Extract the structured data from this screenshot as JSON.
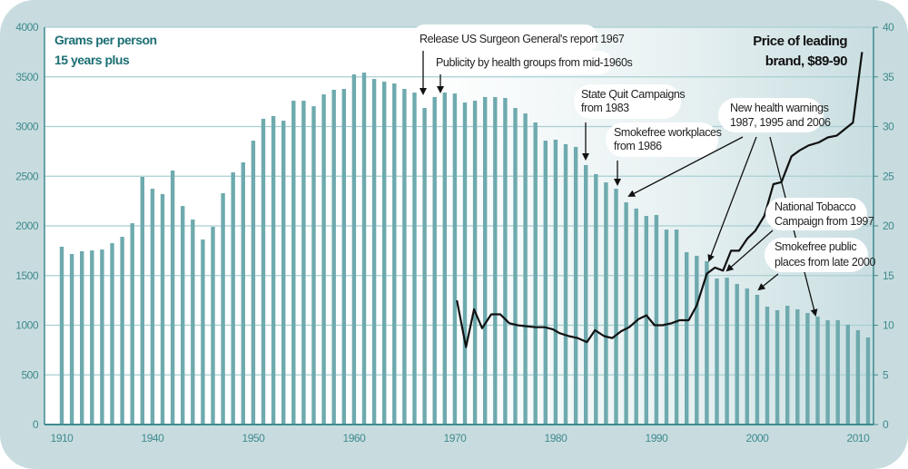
{
  "chart_data": {
    "type": "bar",
    "title": "",
    "left_axis": {
      "label_lines": [
        "Grams per person",
        "15 years plus"
      ],
      "ylim": [
        0,
        4000
      ],
      "ticks": [
        0,
        500,
        1000,
        1500,
        2000,
        2500,
        3000,
        3500,
        4000
      ]
    },
    "right_axis": {
      "label_lines": [
        "Price of leading",
        "brand, $89-90"
      ],
      "ylim": [
        0,
        40
      ],
      "ticks": [
        0,
        5,
        10,
        15,
        20,
        25,
        30,
        35,
        40
      ]
    },
    "x_tick_labels": [
      "1910",
      "1940",
      "1950",
      "1960",
      "1970",
      "1980",
      "1990",
      "2000",
      "2010"
    ],
    "grid": true,
    "categories": [
      "1910",
      "1932",
      "1933",
      "1934",
      "1935",
      "1936",
      "1937",
      "1938",
      "1939",
      "1940",
      "1941",
      "1942",
      "1943",
      "1944",
      "1945",
      "1946",
      "1947",
      "1948",
      "1949",
      "1950",
      "1951",
      "1952",
      "1953",
      "1954",
      "1955",
      "1956",
      "1957",
      "1958",
      "1959",
      "1960",
      "1961",
      "1962",
      "1963",
      "1964",
      "1965",
      "1966",
      "1967",
      "1968",
      "1969",
      "1970",
      "1971",
      "1972",
      "1973",
      "1974",
      "1975",
      "1976",
      "1977",
      "1978",
      "1979",
      "1980",
      "1981",
      "1982",
      "1983",
      "1984",
      "1985",
      "1986",
      "1987",
      "1988",
      "1989",
      "1990",
      "1991",
      "1992",
      "1993",
      "1994",
      "1995",
      "1996",
      "1997",
      "1998",
      "1999",
      "2000",
      "2001",
      "2002",
      "2003",
      "2004",
      "2005",
      "2006",
      "2007",
      "2008",
      "2009",
      "2010",
      "2011"
    ],
    "series": [
      {
        "name": "Grams per person 15 years plus",
        "type": "bar",
        "axis": "left",
        "color": "#6eaaae",
        "values": [
          1790,
          1717,
          1745,
          1753,
          1762,
          1826,
          1890,
          2027,
          2493,
          2374,
          2320,
          2557,
          2200,
          2064,
          1863,
          1991,
          2329,
          2539,
          2639,
          2858,
          3078,
          3105,
          3059,
          3260,
          3260,
          3205,
          3324,
          3370,
          3379,
          3525,
          3543,
          3479,
          3452,
          3434,
          3379,
          3342,
          3187,
          3297,
          3342,
          3333,
          3242,
          3260,
          3297,
          3297,
          3288,
          3187,
          3132,
          3041,
          2858,
          2868,
          2822,
          2795,
          2612,
          2521,
          2438,
          2374,
          2237,
          2174,
          2100,
          2110,
          1963,
          1963,
          1735,
          1699,
          1644,
          1470,
          1479,
          1416,
          1370,
          1306,
          1187,
          1151,
          1196,
          1160,
          1123,
          1087,
          1050,
          1050,
          1005,
          950,
          877
        ]
      },
      {
        "name": "Price of leading brand, $89-90",
        "type": "line",
        "axis": "right",
        "color": "#111111",
        "x_years": [
          1970.2,
          1971.1,
          1971.9,
          1972.7,
          1973.6,
          1974.5,
          1975.4,
          1976.2,
          1977.1,
          1978.0,
          1978.9,
          1979.7,
          1980.4,
          1981.3,
          1982.2,
          1983.1,
          1983.9,
          1984.8,
          1985.6,
          1986.5,
          1987.3,
          1988.2,
          1989.0,
          1989.8,
          1990.6,
          1991.5,
          1992.3,
          1993.2,
          1994.0,
          1995.0,
          1995.8,
          1996.6,
          1997.4,
          1998.2,
          1999.0,
          1999.8,
          2000.7,
          2001.6,
          2002.4,
          2003.4,
          2004.2,
          2005.1,
          2006.1,
          2007.0,
          2007.9,
          2009.5,
          2010.4
        ],
        "values": [
          12.5,
          7.8,
          11.6,
          9.7,
          11.1,
          11.1,
          10.2,
          10.0,
          9.9,
          9.8,
          9.8,
          9.6,
          9.2,
          8.9,
          8.7,
          8.3,
          9.5,
          8.9,
          8.7,
          9.4,
          9.8,
          10.6,
          11.0,
          10.0,
          10.0,
          10.2,
          10.5,
          10.5,
          12.0,
          15.2,
          15.8,
          15.5,
          17.5,
          17.5,
          18.7,
          19.5,
          21.0,
          24.2,
          24.4,
          27.0,
          27.6,
          28.1,
          28.4,
          28.9,
          29.1,
          30.4,
          37.5
        ]
      }
    ],
    "annotations": [
      {
        "id": "surgeon-general",
        "lines": [
          "Release US Surgeon General's report 1967"
        ],
        "points_to": [
          "1967"
        ]
      },
      {
        "id": "publicity",
        "lines": [
          "Publicity by health groups from mid-1960s"
        ],
        "points_to": [
          "1968"
        ]
      },
      {
        "id": "state-quit",
        "lines": [
          "State Quit Campaigns",
          "from 1983"
        ],
        "points_to": [
          "1983"
        ]
      },
      {
        "id": "smokefree-workplaces",
        "lines": [
          "Smokefree workplaces",
          "from 1986"
        ],
        "points_to": [
          "1986"
        ]
      },
      {
        "id": "health-warnings",
        "lines": [
          "New health warnings",
          "1987, 1995 and 2006"
        ],
        "points_to": [
          "1987",
          "1995",
          "2006"
        ]
      },
      {
        "id": "national-tobacco",
        "lines": [
          "National Tobacco",
          "Campaign from 1997"
        ],
        "points_to": [
          "1997"
        ]
      },
      {
        "id": "smokefree-public",
        "lines": [
          "Smokefree public",
          "places from late 2000"
        ],
        "points_to": [
          "2000"
        ]
      }
    ]
  }
}
